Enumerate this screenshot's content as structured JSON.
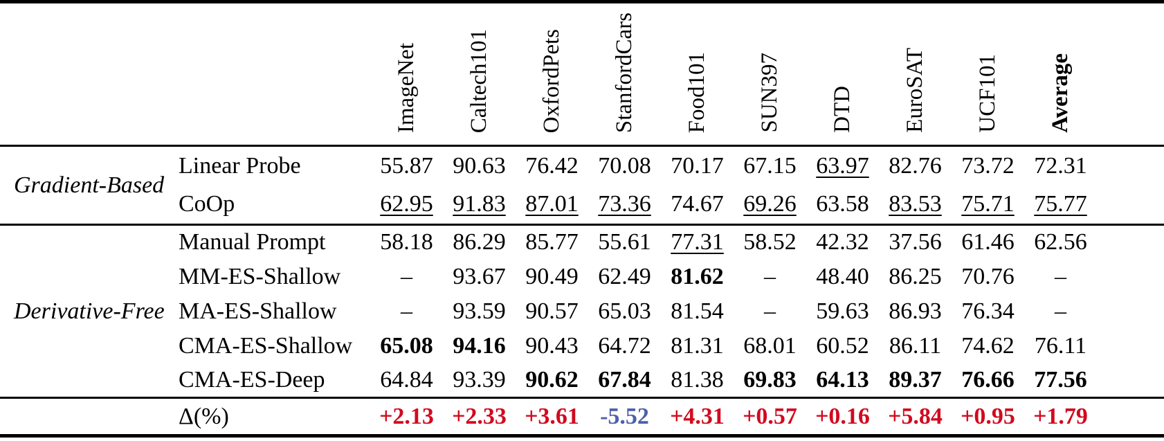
{
  "page": {
    "background": "#ffffff"
  },
  "colors": {
    "text": "#000000",
    "rule": "#000000",
    "positive_delta": "#d20a1e",
    "negative_delta": "#4d61a8"
  },
  "table": {
    "columns": [
      {
        "label": "ImageNet",
        "bold": false
      },
      {
        "label": "Caltech101",
        "bold": false
      },
      {
        "label": "OxfordPets",
        "bold": false
      },
      {
        "label": "StanfordCars",
        "bold": false
      },
      {
        "label": "Food101",
        "bold": false
      },
      {
        "label": "SUN397",
        "bold": false
      },
      {
        "label": "DTD",
        "bold": false
      },
      {
        "label": "EuroSAT",
        "bold": false
      },
      {
        "label": "UCF101",
        "bold": false
      },
      {
        "label": "Average",
        "bold": true
      }
    ],
    "groups": [
      {
        "label": "Gradient-Based",
        "rows": [
          {
            "method": "Linear Probe",
            "cells": [
              {
                "text": "55.87",
                "style": "plain"
              },
              {
                "text": "90.63",
                "style": "plain"
              },
              {
                "text": "76.42",
                "style": "plain"
              },
              {
                "text": "70.08",
                "style": "plain"
              },
              {
                "text": "70.17",
                "style": "plain"
              },
              {
                "text": "67.15",
                "style": "plain"
              },
              {
                "text": "63.97",
                "style": "underline"
              },
              {
                "text": "82.76",
                "style": "plain"
              },
              {
                "text": "73.72",
                "style": "plain"
              },
              {
                "text": "72.31",
                "style": "plain"
              }
            ]
          },
          {
            "method": "CoOp",
            "cells": [
              {
                "text": "62.95",
                "style": "underline"
              },
              {
                "text": "91.83",
                "style": "underline"
              },
              {
                "text": "87.01",
                "style": "underline"
              },
              {
                "text": "73.36",
                "style": "underline"
              },
              {
                "text": "74.67",
                "style": "plain"
              },
              {
                "text": "69.26",
                "style": "underline"
              },
              {
                "text": "63.58",
                "style": "plain"
              },
              {
                "text": "83.53",
                "style": "underline"
              },
              {
                "text": "75.71",
                "style": "underline"
              },
              {
                "text": "75.77",
                "style": "underline"
              }
            ]
          }
        ]
      },
      {
        "label": "Derivative-Free",
        "rows": [
          {
            "method": "Manual Prompt",
            "cells": [
              {
                "text": "58.18",
                "style": "plain"
              },
              {
                "text": "86.29",
                "style": "plain"
              },
              {
                "text": "85.77",
                "style": "plain"
              },
              {
                "text": "55.61",
                "style": "plain"
              },
              {
                "text": "77.31",
                "style": "underline"
              },
              {
                "text": "58.52",
                "style": "plain"
              },
              {
                "text": "42.32",
                "style": "plain"
              },
              {
                "text": "37.56",
                "style": "plain"
              },
              {
                "text": "61.46",
                "style": "plain"
              },
              {
                "text": "62.56",
                "style": "plain"
              }
            ]
          },
          {
            "method": "MM-ES-Shallow",
            "cells": [
              {
                "text": "–",
                "style": "plain"
              },
              {
                "text": "93.67",
                "style": "plain"
              },
              {
                "text": "90.49",
                "style": "plain"
              },
              {
                "text": "62.49",
                "style": "plain"
              },
              {
                "text": "81.62",
                "style": "bold"
              },
              {
                "text": "–",
                "style": "plain"
              },
              {
                "text": "48.40",
                "style": "plain"
              },
              {
                "text": "86.25",
                "style": "plain"
              },
              {
                "text": "70.76",
                "style": "plain"
              },
              {
                "text": "–",
                "style": "plain"
              }
            ]
          },
          {
            "method": "MA-ES-Shallow",
            "cells": [
              {
                "text": "–",
                "style": "plain"
              },
              {
                "text": "93.59",
                "style": "plain"
              },
              {
                "text": "90.57",
                "style": "plain"
              },
              {
                "text": "65.03",
                "style": "plain"
              },
              {
                "text": "81.54",
                "style": "plain"
              },
              {
                "text": "–",
                "style": "plain"
              },
              {
                "text": "59.63",
                "style": "plain"
              },
              {
                "text": "86.93",
                "style": "plain"
              },
              {
                "text": "76.34",
                "style": "plain"
              },
              {
                "text": "–",
                "style": "plain"
              }
            ]
          },
          {
            "method": "CMA-ES-Shallow",
            "cells": [
              {
                "text": "65.08",
                "style": "bold"
              },
              {
                "text": "94.16",
                "style": "bold"
              },
              {
                "text": "90.43",
                "style": "plain"
              },
              {
                "text": "64.72",
                "style": "plain"
              },
              {
                "text": "81.31",
                "style": "plain"
              },
              {
                "text": "68.01",
                "style": "plain"
              },
              {
                "text": "60.52",
                "style": "plain"
              },
              {
                "text": "86.11",
                "style": "plain"
              },
              {
                "text": "74.62",
                "style": "plain"
              },
              {
                "text": "76.11",
                "style": "plain"
              }
            ]
          },
          {
            "method": "CMA-ES-Deep",
            "cells": [
              {
                "text": "64.84",
                "style": "plain"
              },
              {
                "text": "93.39",
                "style": "plain"
              },
              {
                "text": "90.62",
                "style": "bold"
              },
              {
                "text": "67.84",
                "style": "bold"
              },
              {
                "text": "81.38",
                "style": "plain"
              },
              {
                "text": "69.83",
                "style": "bold"
              },
              {
                "text": "64.13",
                "style": "bold"
              },
              {
                "text": "89.37",
                "style": "bold"
              },
              {
                "text": "76.66",
                "style": "bold"
              },
              {
                "text": "77.56",
                "style": "bold"
              }
            ]
          }
        ]
      }
    ],
    "delta_row": {
      "label": "Δ(%)",
      "cells": [
        {
          "text": "+2.13",
          "color": "positive_delta"
        },
        {
          "text": "+2.33",
          "color": "positive_delta"
        },
        {
          "text": "+3.61",
          "color": "positive_delta"
        },
        {
          "text": "-5.52",
          "color": "negative_delta"
        },
        {
          "text": "+4.31",
          "color": "positive_delta"
        },
        {
          "text": "+0.57",
          "color": "positive_delta"
        },
        {
          "text": "+0.16",
          "color": "positive_delta"
        },
        {
          "text": "+5.84",
          "color": "positive_delta"
        },
        {
          "text": "+0.95",
          "color": "positive_delta"
        },
        {
          "text": "+1.79",
          "color": "positive_delta"
        }
      ]
    }
  }
}
